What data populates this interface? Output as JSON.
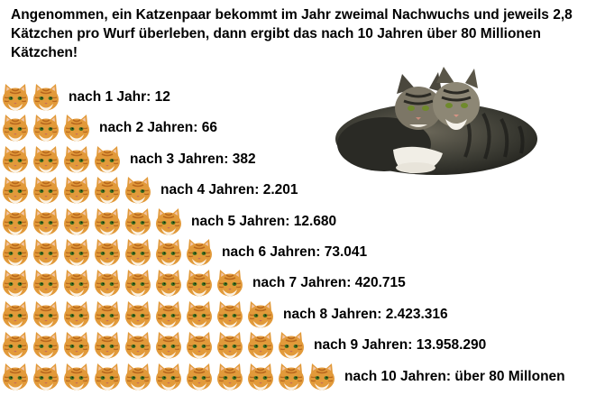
{
  "intro_text": "Angenommen, ein Katzenpaar bekommt im Jahr zweimal Nachwuchs und jeweils 2,8 Kätzchen pro Wurf überleben, dann ergibt das nach 10 Jahren über 80 Millionen Kätzchen!",
  "rows": [
    {
      "label": "nach 1 Jahr: 12",
      "faces": 2
    },
    {
      "label": "nach 2 Jahren: 66",
      "faces": 3
    },
    {
      "label": "nach 3 Jahren: 382",
      "faces": 4
    },
    {
      "label": "nach 4 Jahren: 2.201",
      "faces": 5
    },
    {
      "label": "nach 5 Jahren: 12.680",
      "faces": 6
    },
    {
      "label": "nach 6 Jahren: 73.041",
      "faces": 7
    },
    {
      "label": "nach 7 Jahren: 420.715",
      "faces": 8
    },
    {
      "label": "nach 8 Jahren: 2.423.316",
      "faces": 9
    },
    {
      "label": "nach 9 Jahren: 13.958.290",
      "faces": 10
    },
    {
      "label": "nach 10 Jahren: über 80 Millonen",
      "faces": 11
    }
  ],
  "colors": {
    "cat_fur": "#e29a3a",
    "cat_stripe": "#b8681e",
    "cat_white": "#fbf3e6",
    "cat_eye": "#3c6e1e",
    "photo_cat": "#3b3b33"
  },
  "icons": {
    "face": "cat-face-icon",
    "photo": "cat-pair-illustration"
  }
}
